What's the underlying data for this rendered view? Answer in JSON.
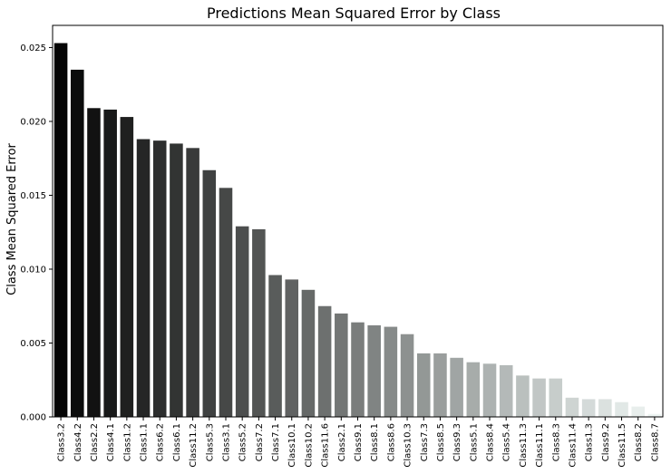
{
  "chart_data": {
    "type": "bar",
    "title": "Predictions Mean Squared Error by Class",
    "xlabel": "",
    "ylabel": "Class Mean Squared Error",
    "ylim": [
      0,
      0.0265
    ],
    "yticks": [
      "0.000",
      "0.005",
      "0.010",
      "0.015",
      "0.020",
      "0.025"
    ],
    "ytick_values": [
      0,
      0.005,
      0.01,
      0.015,
      0.02,
      0.025
    ],
    "grid": false,
    "color_start": "#050505",
    "color_end": "#eef5f3",
    "categories": [
      "Class3.2",
      "Class4.2",
      "Class2.2",
      "Class4.1",
      "Class1.2",
      "Class1.1",
      "Class6.2",
      "Class6.1",
      "Class11.2",
      "Class5.3",
      "Class3.1",
      "Class5.2",
      "Class7.2",
      "Class7.1",
      "Class10.1",
      "Class10.2",
      "Class11.6",
      "Class2.1",
      "Class9.1",
      "Class8.1",
      "Class8.6",
      "Class10.3",
      "Class7.3",
      "Class8.5",
      "Class9.3",
      "Class5.1",
      "Class8.4",
      "Class5.4",
      "Class11.3",
      "Class11.1",
      "Class8.3",
      "Class11.4",
      "Class1.3",
      "Class9.2",
      "Class11.5",
      "Class8.2",
      "Class8.7"
    ],
    "values": [
      0.0253,
      0.0235,
      0.0209,
      0.0208,
      0.0203,
      0.0188,
      0.0187,
      0.0185,
      0.0182,
      0.0167,
      0.0155,
      0.0129,
      0.0127,
      0.0096,
      0.0093,
      0.0086,
      0.0075,
      0.007,
      0.0064,
      0.0062,
      0.0061,
      0.0056,
      0.0043,
      0.0043,
      0.004,
      0.0037,
      0.0036,
      0.0035,
      0.0028,
      0.0026,
      0.0026,
      0.0013,
      0.0012,
      0.0012,
      0.001,
      0.0007,
      0.0002
    ]
  }
}
